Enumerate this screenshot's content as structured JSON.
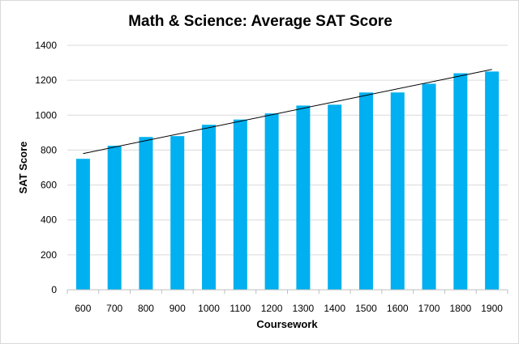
{
  "chart_data": {
    "type": "bar",
    "title": "Math & Science: Average SAT Score",
    "xlabel": "Coursework",
    "ylabel": "SAT Score",
    "categories": [
      "600",
      "700",
      "800",
      "900",
      "1000",
      "1100",
      "1200",
      "1300",
      "1400",
      "1500",
      "1600",
      "1700",
      "1800",
      "1900"
    ],
    "values": [
      750,
      825,
      875,
      880,
      945,
      975,
      1010,
      1055,
      1060,
      1130,
      1130,
      1180,
      1240,
      1250
    ],
    "ylim": [
      0,
      1400
    ],
    "yticks": [
      0,
      200,
      400,
      600,
      800,
      1000,
      1200,
      1400
    ],
    "grid": true,
    "legend": "none",
    "bar_color": "#00b0f0",
    "trendline": {
      "type": "linear",
      "start": 780,
      "end": 1262,
      "color": "#000000"
    }
  }
}
